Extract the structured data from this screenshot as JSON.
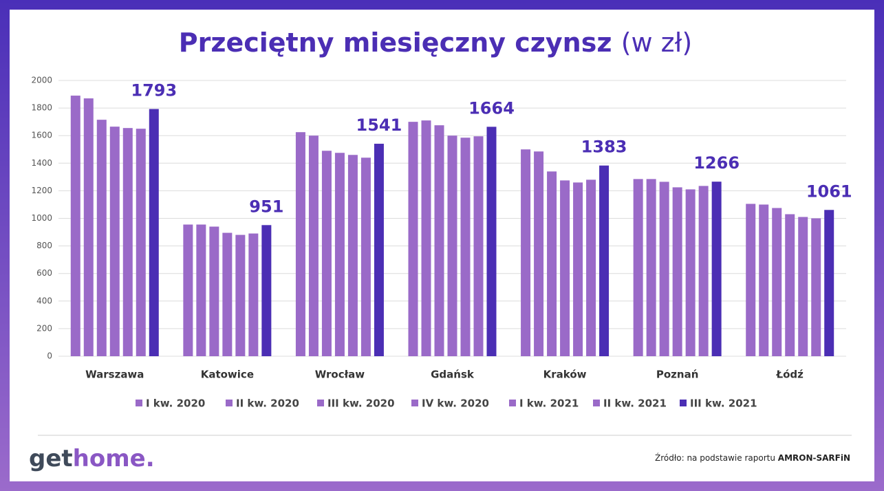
{
  "chart_data": {
    "type": "bar",
    "title": "Przeciętny miesięczny czynsz",
    "subtitle": "(w zł)",
    "categories": [
      "Warszawa",
      "Katowice",
      "Wrocław",
      "Gdańsk",
      "Kraków",
      "Poznań",
      "Łódź"
    ],
    "series": [
      {
        "name": "I kw. 2020",
        "color": "#9a6ac8",
        "values": [
          1890,
          955,
          1625,
          1700,
          1500,
          1285,
          1105
        ]
      },
      {
        "name": "II kw. 2020",
        "color": "#9a6ac8",
        "values": [
          1870,
          955,
          1600,
          1710,
          1485,
          1285,
          1100
        ]
      },
      {
        "name": "III kw. 2020",
        "color": "#9a6ac8",
        "values": [
          1715,
          940,
          1490,
          1675,
          1340,
          1265,
          1075
        ]
      },
      {
        "name": "IV kw. 2020",
        "color": "#9a6ac8",
        "values": [
          1665,
          895,
          1475,
          1600,
          1275,
          1225,
          1030
        ]
      },
      {
        "name": "I kw. 2021",
        "color": "#9a6ac8",
        "values": [
          1655,
          880,
          1460,
          1585,
          1260,
          1210,
          1010
        ]
      },
      {
        "name": "II kw. 2021",
        "color": "#9a6ac8",
        "values": [
          1650,
          890,
          1440,
          1595,
          1280,
          1235,
          1000
        ]
      },
      {
        "name": "III kw. 2021",
        "color": "#4b2eb4",
        "values": [
          1793,
          951,
          1541,
          1664,
          1383,
          1266,
          1061
        ],
        "data_labels": true
      }
    ],
    "ylim": [
      0,
      2000
    ],
    "yticks": [
      0,
      200,
      400,
      600,
      800,
      1000,
      1200,
      1400,
      1600,
      1800,
      2000
    ],
    "grid": true,
    "legend": "bottom"
  },
  "footer": {
    "logo_get": "get",
    "logo_home": "home.",
    "source": "Źródło: na podstawie raportu",
    "source_bold": "AMRON-SARFiN"
  }
}
